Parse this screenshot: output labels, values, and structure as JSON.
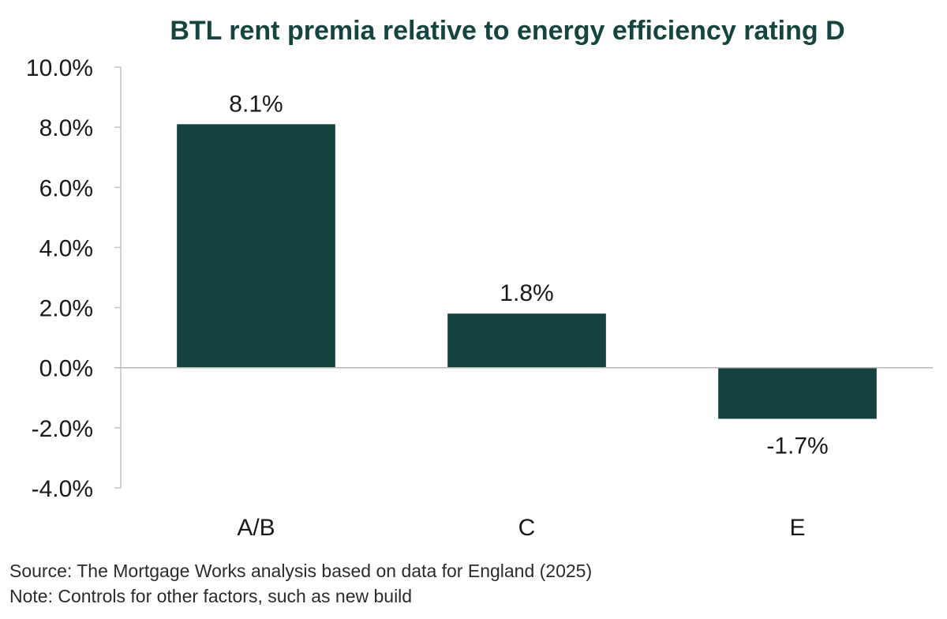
{
  "chart_data": {
    "type": "bar",
    "title": "BTL rent premia relative to energy efficiency rating D",
    "categories": [
      "A/B",
      "C",
      "E"
    ],
    "values": [
      8.1,
      1.8,
      -1.7
    ],
    "data_labels": [
      "8.1%",
      "1.8%",
      "-1.7%"
    ],
    "y_ticks": [
      10,
      8,
      6,
      4,
      2,
      0,
      -2,
      -4
    ],
    "y_tick_labels": [
      "10.0%",
      "8.0%",
      "6.0%",
      "4.0%",
      "2.0%",
      "0.0%",
      "-2.0%",
      "-4.0%"
    ],
    "ylim": [
      -4,
      10
    ],
    "xlabel": "",
    "ylabel": "",
    "grid": false,
    "legend": "none",
    "bar_color": "#14433f",
    "title_color": "#16443f"
  },
  "notes": {
    "source": "Source: The Mortgage Works analysis based on data for England (2025)",
    "note": "Note: Controls for other factors, such as new build"
  }
}
